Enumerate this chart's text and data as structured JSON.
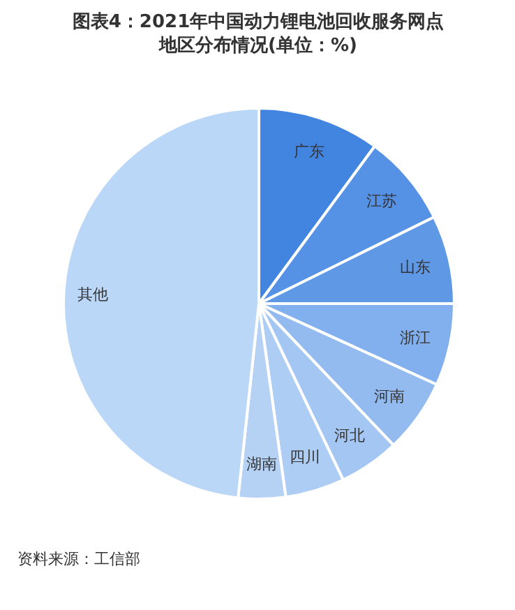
{
  "chart_data": {
    "type": "pie",
    "title": "图表4：2021年中国动力锂电池回收服务网点地区分布情况(单位：%)",
    "categories": [
      "广东",
      "江苏",
      "山东",
      "浙江",
      "河南",
      "河北",
      "四川",
      "湖南",
      "其他"
    ],
    "values": [
      10.1,
      7.6,
      7.3,
      6.8,
      6.1,
      5.0,
      4.9,
      3.9,
      48.3
    ],
    "colors": [
      "#4285e0",
      "#5591e4",
      "#5f99e6",
      "#82b0ee",
      "#93bbf0",
      "#a3c6f2",
      "#aecdf4",
      "#b5d2f5",
      "#bbd7f8"
    ],
    "legend": false,
    "annotations": [
      "资料来源：工信部"
    ]
  }
}
